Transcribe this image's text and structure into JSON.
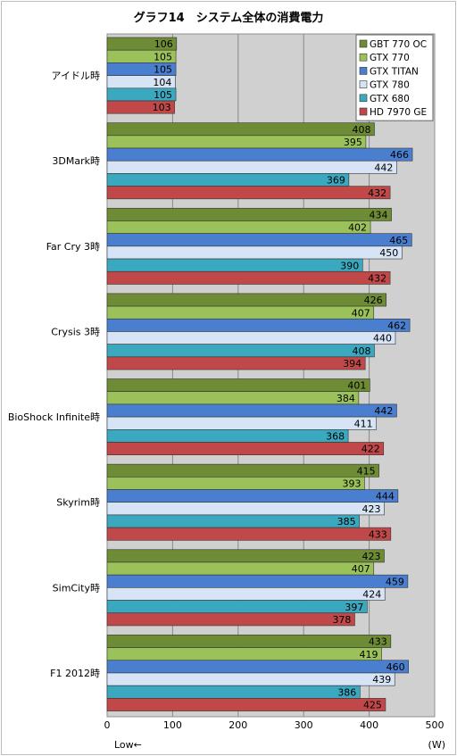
{
  "chart_data": {
    "type": "bar",
    "orientation": "horizontal",
    "title": "グラフ14　システム全体の消費電力",
    "unit_label": "(W)",
    "note": "Low←",
    "xlim": [
      0,
      500
    ],
    "xticks": [
      0,
      100,
      200,
      300,
      400,
      500
    ],
    "grid": true,
    "legend_position": "top-right",
    "categories": [
      "アイドル時",
      "3DMark時",
      "Far Cry 3時",
      "Crysis 3時",
      "BioShock Infinite時",
      "Skyrim時",
      "SimCity時",
      "F1 2012時"
    ],
    "series": [
      {
        "name": "GBT 770 OC",
        "color": "#6e8b35",
        "values": [
          106,
          408,
          434,
          426,
          401,
          415,
          423,
          433
        ]
      },
      {
        "name": "GTX 770",
        "color": "#9bc25a",
        "values": [
          105,
          395,
          402,
          407,
          384,
          393,
          407,
          419
        ]
      },
      {
        "name": "GTX TITAN",
        "color": "#4a7fcf",
        "values": [
          105,
          466,
          465,
          462,
          442,
          444,
          459,
          460
        ]
      },
      {
        "name": "GTX 780",
        "color": "#d6e4f5",
        "values": [
          104,
          442,
          450,
          440,
          411,
          423,
          424,
          439
        ]
      },
      {
        "name": "GTX 680",
        "color": "#3aa8bf",
        "values": [
          105,
          369,
          390,
          408,
          368,
          385,
          397,
          386
        ]
      },
      {
        "name": "HD 7970 GE",
        "color": "#c04848",
        "values": [
          103,
          432,
          432,
          394,
          422,
          433,
          378,
          425
        ]
      }
    ]
  }
}
